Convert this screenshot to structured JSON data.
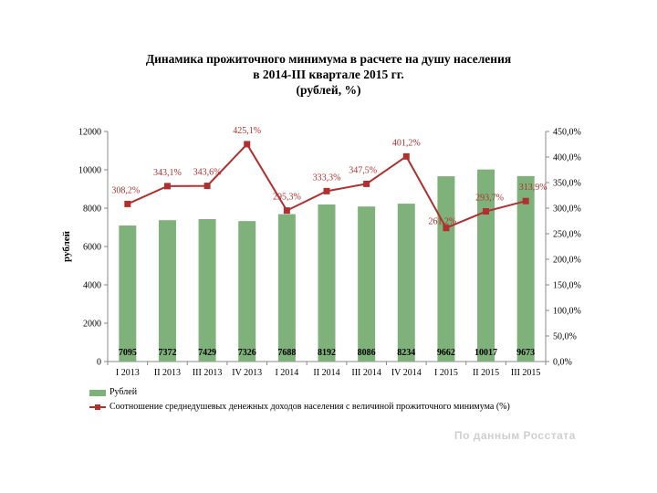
{
  "title": {
    "line1": "Динамика прожиточного минимума в расчете на душу населения",
    "line2": "в 2014-III квартале 2015 гг.",
    "line3": "(рублей, %)"
  },
  "source": "По данным Росстата",
  "colors": {
    "bar": "#7fb27a",
    "line": "#b03030",
    "axis": "#888888",
    "grid": "#d0d0d0"
  },
  "chart_data": {
    "type": "bar",
    "categories": [
      "I 2013",
      "II 2013",
      "III 2013",
      "IV 2013",
      "I 2014",
      "II 2014",
      "III 2014",
      "IV 2014",
      "I 2015",
      "II 2015",
      "III 2015"
    ],
    "series": [
      {
        "name": "Рублей",
        "type": "bar",
        "axis": "left",
        "values": [
          7095,
          7372,
          7429,
          7326,
          7688,
          8192,
          8086,
          8234,
          9662,
          10017,
          9673
        ],
        "labels": [
          "7095",
          "7372",
          "7429",
          "7326",
          "7688",
          "8192",
          "8086",
          "8234",
          "9662",
          "10017",
          "9673"
        ]
      },
      {
        "name": "Соотношение среднедушевых денежных доходов населения с величиной прожиточного минимума (%)",
        "type": "line",
        "axis": "right",
        "values": [
          308.2,
          343.1,
          343.6,
          425.1,
          295.3,
          333.3,
          347.5,
          401.2,
          261.2,
          293.7,
          313.9
        ],
        "labels": [
          "308,2%",
          "343,1%",
          "343,6%",
          "425,1%",
          "295,3%",
          "333,3%",
          "347,5%",
          "401,2%",
          "261,2%",
          "293,7%",
          "313,9%"
        ]
      }
    ],
    "ylabel": "рублей",
    "ylim": [
      0,
      12000
    ],
    "yticks": [
      "0",
      "2000",
      "4000",
      "6000",
      "8000",
      "10000",
      "12000"
    ],
    "y2lim": [
      0,
      450
    ],
    "y2ticks": [
      "0,0%",
      "50,0%",
      "100,0%",
      "150,0%",
      "200,0%",
      "250,0%",
      "300,0%",
      "350,0%",
      "400,0%",
      "450,0%"
    ],
    "grid": false,
    "legend": "bottom"
  }
}
